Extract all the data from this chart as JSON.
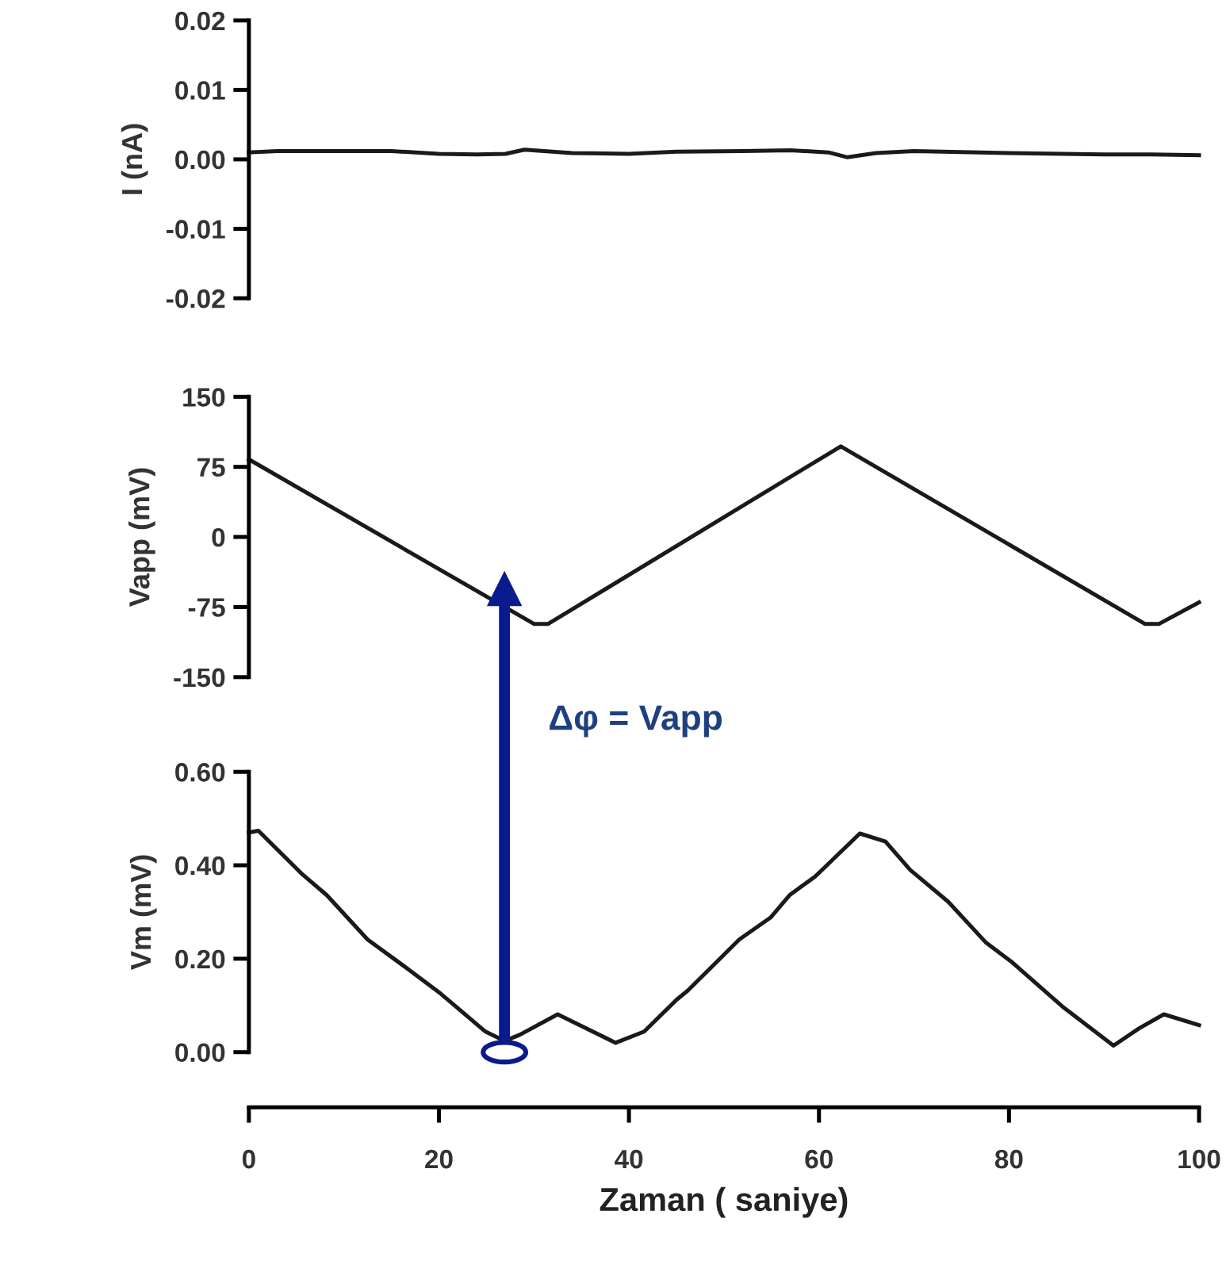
{
  "chart_data": [
    {
      "type": "line",
      "ylabel": "I (nA)",
      "tick_labels": "y",
      "xlim": [
        0,
        100
      ],
      "ylim": [
        -0.02,
        0.02
      ],
      "yticks": [
        0.02,
        0.01,
        {
          "value": 0,
          "label": "0.00"
        },
        -0.01,
        -0.02
      ],
      "series": [
        {
          "color": "#1a1a1a",
          "x": [
            0,
            3,
            10,
            15,
            20,
            24,
            27,
            29,
            34,
            40,
            45,
            52,
            57,
            61,
            63,
            66,
            70,
            80,
            90,
            95,
            100
          ],
          "values": [
            0.001,
            0.0012,
            0.0012,
            0.0012,
            0.0008,
            0.0007,
            0.0008,
            0.0014,
            0.0009,
            0.0008,
            0.0011,
            0.0012,
            0.0013,
            0.001,
            0.0003,
            0.0009,
            0.0012,
            0.0009,
            0.0007,
            0.0007,
            0.0006
          ]
        }
      ]
    },
    {
      "type": "line",
      "ylabel": "Vapp (mV)",
      "tick_labels": "y",
      "xlim": [
        0,
        100
      ],
      "ylim": [
        -150,
        150
      ],
      "yticks": [
        150,
        75,
        0,
        -75,
        -150
      ],
      "series": [
        {
          "color": "#1a1a1a",
          "x": [
            0,
            30,
            31.5,
            62.3,
            94.3,
            95.8,
            100
          ],
          "values": [
            83,
            -93,
            -93,
            97,
            -93,
            -93,
            -70
          ]
        }
      ]
    },
    {
      "type": "line",
      "ylabel": "Vm (mV)",
      "xlabel": "Zaman ( saniye)",
      "xlim": [
        0,
        100
      ],
      "xticks": [
        0,
        20,
        40,
        60,
        80,
        100
      ],
      "ylim": [
        0,
        0.6
      ],
      "yticks": [
        {
          "value": 0.6,
          "label": "0.60"
        },
        {
          "value": 0.4,
          "label": "0.40"
        },
        {
          "value": 0.2,
          "label": "0.20"
        },
        {
          "value": 0,
          "label": "0.00"
        }
      ],
      "annotations": [
        "Δφ = Vapp"
      ],
      "series": [
        {
          "color": "#1a1a1a",
          "x": [
            0,
            1,
            5.5,
            8.2,
            12.5,
            16.2,
            20.2,
            24.9,
            26.9,
            28.5,
            32.5,
            38.6,
            41.6,
            45,
            46.2,
            51.6,
            54.9,
            56.9,
            59.6,
            64.3,
            67,
            69.6,
            73.6,
            77.6,
            80.3,
            85.6,
            91,
            93.7,
            96.3,
            100
          ],
          "values": [
            0.47,
            0.474,
            0.383,
            0.336,
            0.241,
            0.186,
            0.125,
            0.044,
            0.024,
            0.037,
            0.081,
            0.02,
            0.044,
            0.112,
            0.132,
            0.241,
            0.288,
            0.336,
            0.376,
            0.468,
            0.451,
            0.39,
            0.322,
            0.234,
            0.193,
            0.098,
            0.014,
            0.051,
            0.081,
            0.058
          ]
        }
      ]
    }
  ]
}
